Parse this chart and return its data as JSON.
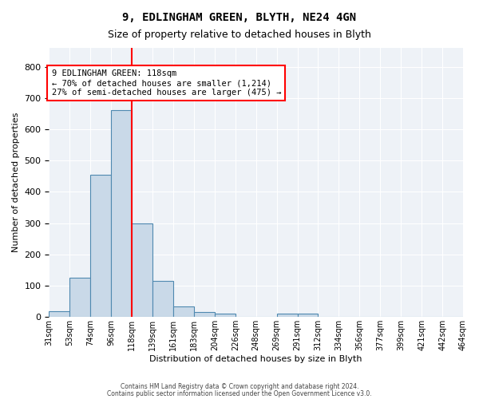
{
  "title1": "9, EDLINGHAM GREEN, BLYTH, NE24 4GN",
  "title2": "Size of property relative to detached houses in Blyth",
  "xlabel": "Distribution of detached houses by size in Blyth",
  "ylabel": "Number of detached properties",
  "bin_labels": [
    "31sqm",
    "53sqm",
    "74sqm",
    "96sqm",
    "118sqm",
    "139sqm",
    "161sqm",
    "183sqm",
    "204sqm",
    "226sqm",
    "248sqm",
    "269sqm",
    "291sqm",
    "312sqm",
    "334sqm",
    "356sqm",
    "377sqm",
    "399sqm",
    "421sqm",
    "442sqm",
    "464sqm"
  ],
  "bar_values": [
    18,
    125,
    455,
    660,
    300,
    115,
    35,
    15,
    10,
    0,
    0,
    10,
    10,
    0,
    0,
    0,
    0,
    0,
    0,
    0
  ],
  "bar_color": "#c9d9e8",
  "bar_edge_color": "#4f89b0",
  "red_line_x": 4,
  "annotation_lines": [
    "9 EDLINGHAM GREEN: 118sqm",
    "← 70% of detached houses are smaller (1,214)",
    "27% of semi-detached houses are larger (475) →"
  ],
  "footer1": "Contains HM Land Registry data © Crown copyright and database right 2024.",
  "footer2": "Contains public sector information licensed under the Open Government Licence v3.0.",
  "ylim": [
    0,
    860
  ],
  "yticks": [
    0,
    100,
    200,
    300,
    400,
    500,
    600,
    700,
    800
  ],
  "plot_bg_color": "#eef2f7"
}
